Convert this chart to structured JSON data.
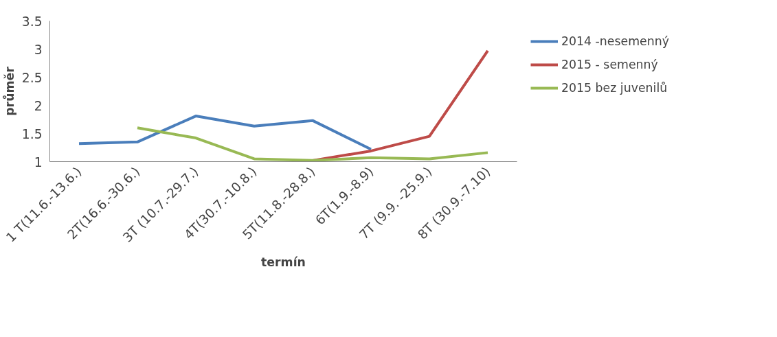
{
  "chart_data": {
    "type": "line",
    "xlabel": "termín",
    "ylabel": "průměr",
    "categories": [
      "1 T(11.6.-13.6.)",
      "2T(16.6.-30.6.)",
      "3T (10.7.-29.7.)",
      "4T(30.7.-10.8.)",
      "5T(11.8.-28.8.)",
      "6T(1.9.-8.9)",
      "7T (9.9. -25.9.)",
      "8T (30.9.-7.10)"
    ],
    "series": [
      {
        "name": "2014 -nesemenný",
        "color": "#4a7ebb",
        "values": [
          1.32,
          1.35,
          1.81,
          1.63,
          1.73,
          1.22,
          null,
          null
        ]
      },
      {
        "name": "2015 - semenný",
        "color": "#be4b48",
        "values": [
          null,
          null,
          null,
          null,
          1.02,
          1.19,
          1.45,
          2.97
        ]
      },
      {
        "name": "2015 bez juvenilů",
        "color": "#98b954",
        "values": [
          null,
          1.6,
          1.42,
          1.05,
          1.02,
          1.07,
          1.05,
          1.16
        ]
      }
    ],
    "ylim": [
      1,
      3.5
    ],
    "yticks": [
      1,
      1.5,
      2,
      2.5,
      3,
      3.5
    ],
    "grid": false,
    "legend": "right",
    "marker": "none",
    "line_style": "solid"
  }
}
